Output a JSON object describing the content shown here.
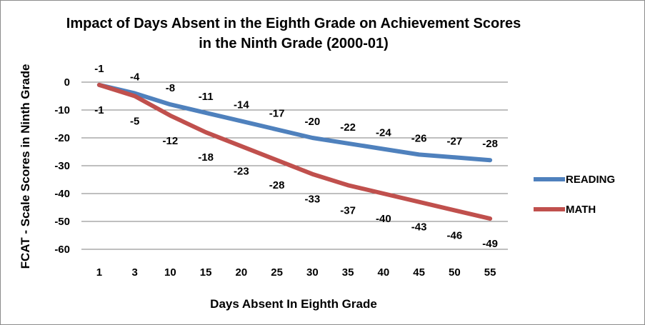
{
  "chart_data": {
    "type": "line",
    "title_lines": [
      "Impact of Days Absent in the Eighth Grade on Achievement Scores",
      "in the Ninth Grade (2000-01)"
    ],
    "xlabel": "Days Absent In Eighth Grade",
    "ylabel": "FCAT - Scale Scores in Ninth Grade",
    "categories": [
      "1",
      "3",
      "10",
      "15",
      "20",
      "25",
      "30",
      "35",
      "40",
      "45",
      "50",
      "55"
    ],
    "yticks": [
      "0",
      "-10",
      "-20",
      "-30",
      "-40",
      "-50",
      "-60"
    ],
    "ylim": [
      -60,
      0
    ],
    "grid": true,
    "legend_position": "right",
    "series": [
      {
        "name": "READING",
        "color": "#4f81bd",
        "values": [
          -1,
          -4,
          -8,
          -11,
          -14,
          -17,
          -20,
          -22,
          -24,
          -26,
          -27,
          -28
        ],
        "labels": [
          "-1",
          "-4",
          "-8",
          "-11",
          "-14",
          "-17",
          "-20",
          "-22",
          "-24",
          "-26",
          "-27",
          "-28"
        ]
      },
      {
        "name": "MATH",
        "color": "#c0504d",
        "values": [
          -1,
          -5,
          -12,
          -18,
          -23,
          -28,
          -33,
          -37,
          -40,
          -43,
          -46,
          -49
        ],
        "labels": [
          "-1",
          "-5",
          "-12",
          "-18",
          "-23",
          "-28",
          "-33",
          "-37",
          "-40",
          "-43",
          "-46",
          "-49"
        ]
      }
    ]
  }
}
